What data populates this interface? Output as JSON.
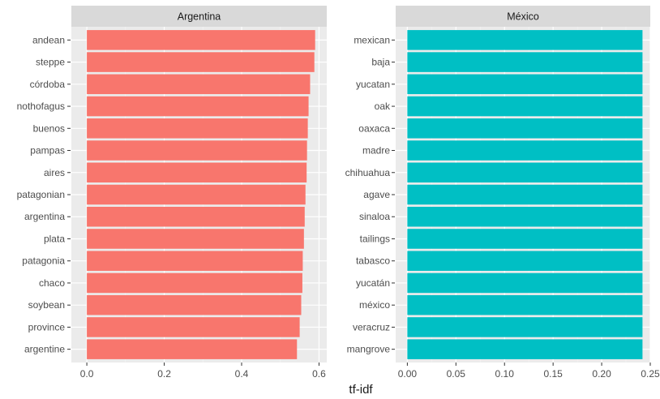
{
  "chart_data": {
    "type": "bar",
    "orientation": "horizontal",
    "xlabel": "tf-idf",
    "grid": true,
    "facets": [
      {
        "title": "Argentina",
        "bar_color": "#F8766D",
        "xlim": [
          -0.04,
          0.62
        ],
        "xticks": [
          0.0,
          0.2,
          0.4,
          0.6
        ],
        "xtick_labels": [
          "0.0",
          "0.2",
          "0.4",
          "0.6"
        ],
        "categories": [
          "andean",
          "steppe",
          "córdoba",
          "nothofagus",
          "buenos",
          "pampas",
          "aires",
          "patagonian",
          "argentina",
          "plata",
          "patagonia",
          "chaco",
          "soybean",
          "province",
          "argentine"
        ],
        "values": [
          0.59,
          0.588,
          0.577,
          0.573,
          0.571,
          0.569,
          0.568,
          0.565,
          0.563,
          0.561,
          0.558,
          0.557,
          0.554,
          0.55,
          0.543
        ]
      },
      {
        "title": "México",
        "bar_color": "#00BFC4",
        "xlim": [
          -0.012,
          0.25
        ],
        "xticks": [
          0.0,
          0.05,
          0.1,
          0.15,
          0.2,
          0.25
        ],
        "xtick_labels": [
          "0.00",
          "0.05",
          "0.10",
          "0.15",
          "0.20",
          "0.25"
        ],
        "categories": [
          "mexican",
          "baja",
          "yucatan",
          "oak",
          "oaxaca",
          "madre",
          "chihuahua",
          "agave",
          "sinaloa",
          "tailings",
          "tabasco",
          "yucatán",
          "méxico",
          "veracruz",
          "mangrove"
        ],
        "values": [
          0.242,
          0.242,
          0.242,
          0.242,
          0.242,
          0.242,
          0.242,
          0.242,
          0.242,
          0.242,
          0.242,
          0.242,
          0.242,
          0.242,
          0.242
        ]
      }
    ]
  }
}
